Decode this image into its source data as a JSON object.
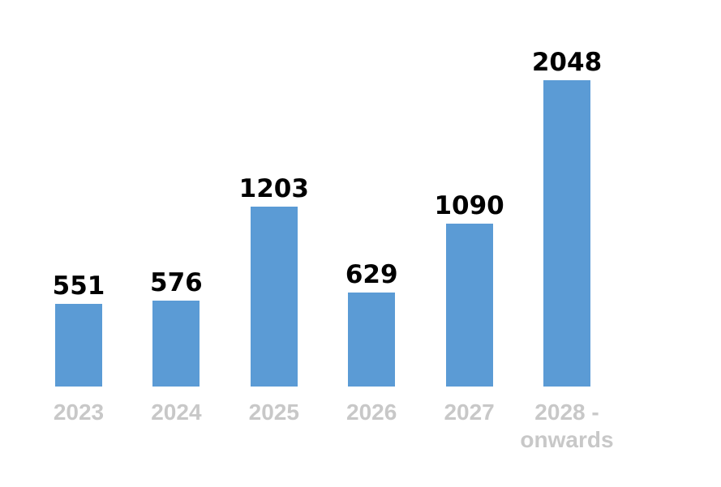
{
  "chart_data": {
    "type": "bar",
    "categories": [
      "2023",
      "2024",
      "2025",
      "2026",
      "2027",
      "2028 - onwards"
    ],
    "values": [
      551,
      576,
      1203,
      629,
      1090,
      2048
    ],
    "color": "#5b9bd5"
  }
}
